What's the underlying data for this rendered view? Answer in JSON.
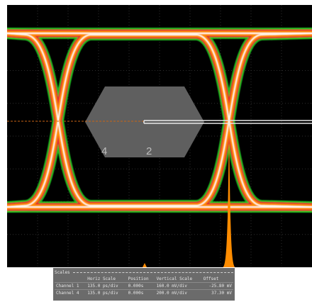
{
  "display": {
    "marker_labels": [
      "4",
      "2"
    ],
    "mask_color": "#5f5f5f",
    "trace_colors": {
      "low_density": "#22c322",
      "mid_density": "#e03030",
      "high_density": "#ff8c00",
      "peak_density": "#ffffff",
      "accent": "#e040e0"
    },
    "cursor_color": "#c86414"
  },
  "scales_panel": {
    "title": "Scales",
    "headers": [
      "",
      "Horiz Scale",
      "Position",
      "Vertical Scale",
      "Offset"
    ],
    "rows": [
      {
        "channel": "Channel 1",
        "horiz_scale": "135.0 ps/div",
        "position": "0.000s",
        "vertical_scale": "160.0 mV/div",
        "offset": "-25.80 mV"
      },
      {
        "channel": "Channel 4",
        "horiz_scale": "135.0 ps/div",
        "position": "0.000s",
        "vertical_scale": "200.0 mV/div",
        "offset": "37.30 mV"
      }
    ]
  }
}
